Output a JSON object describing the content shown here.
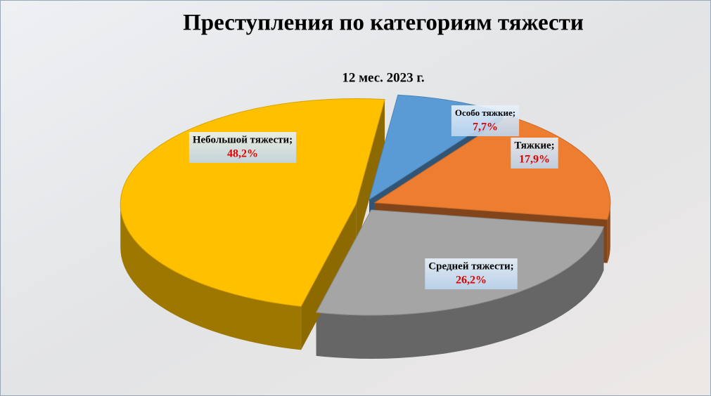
{
  "chart_data": {
    "type": "pie",
    "title": "Преступления по категориям тяжести",
    "subtitle": "12 мес. 2023 г.",
    "categories": [
      "Особо тяжкие;",
      "Тяжкие;",
      "Средней тяжести;",
      "Небольшой тяжести;"
    ],
    "values": [
      7.7,
      17.9,
      26.2,
      48.2
    ],
    "value_labels": [
      "7,7%",
      "17,9%",
      "26,2%",
      "48,2%"
    ],
    "colors": [
      "#5b9bd5",
      "#ed7d31",
      "#a5a5a5",
      "#ffc000"
    ]
  }
}
